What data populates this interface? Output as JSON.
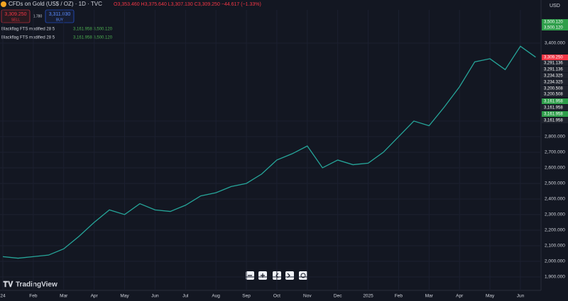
{
  "header": {
    "symbol": "CFDs on Gold (US$ / OZ) · 1D · TVC",
    "ohlc": "O3,353.460 H3,375.640 L3,307.130 C3,309.250 −44.617 (−1.33%)",
    "sell_price": "3,309.250",
    "sell": "SELL",
    "spread": "1.780",
    "buy_price": "3,311.030",
    "buy": "BUY",
    "currency": "USD"
  },
  "indicators": [
    {
      "name": "Blackflag FTS modified 28 5",
      "values": "3,161.958 3,500.120"
    },
    {
      "name": "Blackflag FTS modified 28 5",
      "values": "3,161.958 3,500.120"
    }
  ],
  "price_labels": [
    {
      "label": "3,500.120",
      "color": "#2e9e4a"
    },
    {
      "label": "3,500.120",
      "color": "#2e9e4a"
    },
    {
      "label": "3,309.250",
      "color": "#f23645"
    },
    {
      "label": "3,291.136",
      "color": "#1e222d"
    },
    {
      "label": "3,291.136",
      "color": "#1e222d"
    },
    {
      "label": "3,234.325",
      "color": "#1e222d"
    },
    {
      "label": "3,234.325",
      "color": "#1e222d"
    },
    {
      "label": "3,200.508",
      "color": "#1e222d"
    },
    {
      "label": "3,200.508",
      "color": "#1e222d"
    },
    {
      "label": "3,161.958",
      "color": "#2e9e4a"
    },
    {
      "label": "3,161.958",
      "color": "#1e222d"
    },
    {
      "label": "3,161.958",
      "color": "#2e9e4a"
    },
    {
      "label": "3,161.958",
      "color": "#1e222d"
    }
  ],
  "chart_data": {
    "type": "line",
    "color": "#26a69a",
    "categories": [
      "24",
      null,
      "Feb",
      null,
      "Mar",
      null,
      "Apr",
      null,
      "May",
      null,
      "Jun",
      null,
      "Jul",
      null,
      "Aug",
      null,
      "Sep",
      null,
      "Oct",
      null,
      "Nov",
      null,
      "Dec",
      null,
      "2025",
      null,
      "Feb",
      null,
      "Mar",
      null,
      "Apr",
      null,
      "May",
      null,
      "Jun",
      null
    ],
    "values": [
      2030,
      2020,
      2030,
      2040,
      2080,
      2160,
      2250,
      2330,
      2300,
      2370,
      2330,
      2320,
      2360,
      2420,
      2440,
      2480,
      2500,
      2560,
      2650,
      2690,
      2740,
      2600,
      2650,
      2620,
      2630,
      2700,
      2800,
      2900,
      2870,
      2990,
      3120,
      3280,
      3300,
      3230,
      3380,
      3310
    ],
    "ylim": [
      1859,
      3595
    ],
    "yticks": [
      {
        "value": 1900,
        "label": "1,900.000"
      },
      {
        "value": 2000,
        "label": "2,000.000"
      },
      {
        "value": 2100,
        "label": "2,100.000"
      },
      {
        "value": 2200,
        "label": "2,200.000"
      },
      {
        "value": 2300,
        "label": "2,300.000"
      },
      {
        "value": 2400,
        "label": "2,400.000"
      },
      {
        "value": 2500,
        "label": "2,500.000"
      },
      {
        "value": 2600,
        "label": "2,600.000"
      },
      {
        "value": 2700,
        "label": "2,700.000"
      },
      {
        "value": 2800,
        "label": "2,800.000"
      },
      {
        "value": 2900,
        "label": "2,900.000"
      },
      {
        "value": 3400,
        "label": "3,400.000"
      }
    ],
    "grid": true
  },
  "footer": {
    "brand": "TradingView"
  }
}
